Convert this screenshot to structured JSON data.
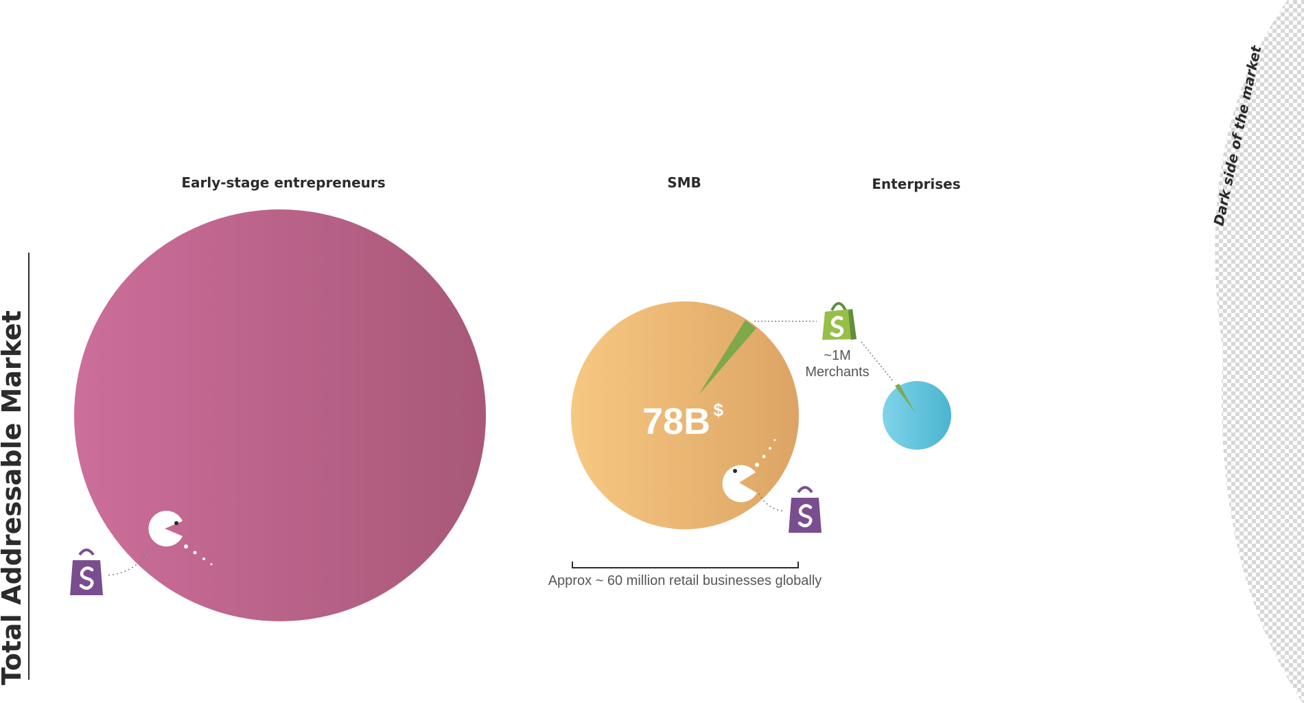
{
  "axis_title": "Total Addressable Market",
  "dark_side_label": "Dark side of the market",
  "segments": {
    "early": {
      "label": "Early-stage entrepreneurs",
      "color_start": "#cc6e9a",
      "color_end": "#a85878"
    },
    "smb": {
      "label": "SMB",
      "value": "78B",
      "value_unit": "$",
      "color_start": "#f7c882",
      "color_end": "#dca464"
    },
    "enterprise": {
      "label": "Enterprises",
      "color_start": "#7fd4ea",
      "color_end": "#4bb4d0"
    }
  },
  "shopify_callout": {
    "line1": "~1M",
    "line2": "Merchants",
    "color": "#95bf47"
  },
  "bracket_caption": "Approx ~ 60 million retail businesses globally",
  "icons": {
    "shopify": "shopify-bag-icon",
    "competitor": "purple-shopping-bag-icon",
    "pacman": "pacman-icon"
  },
  "colors": {
    "competitor_bag": "#7a4d8f",
    "wedge": "#7fa84a",
    "text": "#2b2b2b"
  }
}
